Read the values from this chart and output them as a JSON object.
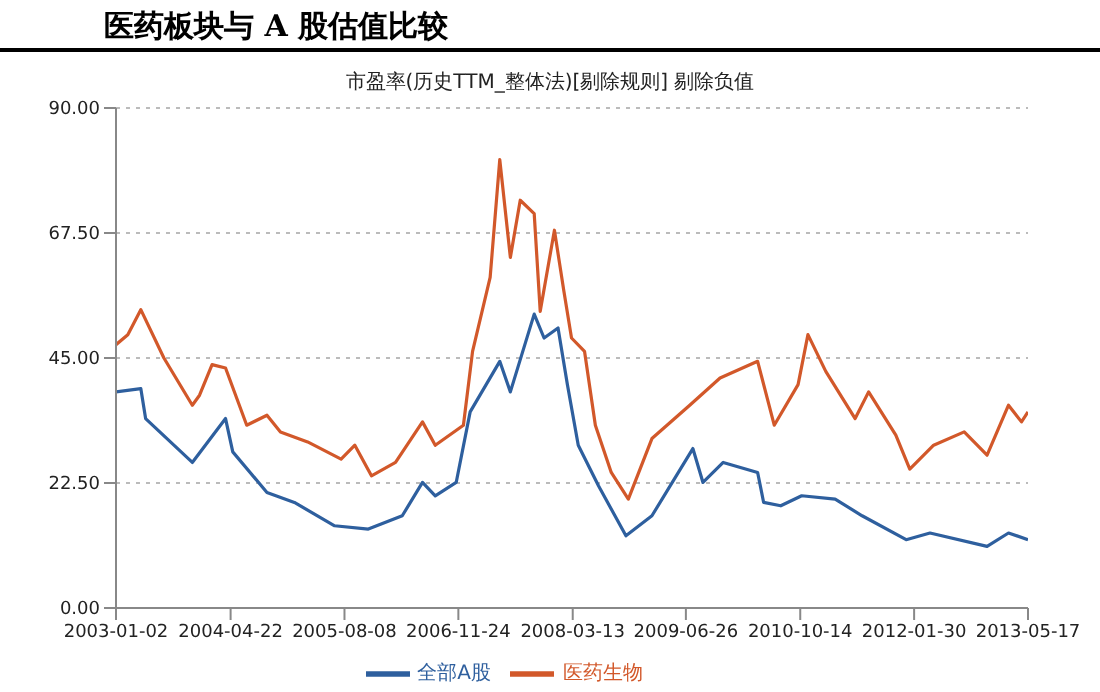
{
  "chart_data": {
    "type": "line",
    "title": "医药板块与 A 股估值比较",
    "subtitle": "市盈率(历史TTM_整体法)[剔除规则] 剔除负值",
    "xlim": [
      "2003-01-02",
      "2013-05-17"
    ],
    "xticks": [
      "2003-01-02",
      "2004-04-22",
      "2005-08-08",
      "2006-11-24",
      "2008-03-13",
      "2009-06-26",
      "2010-10-14",
      "2012-01-30",
      "2013-05-17"
    ],
    "ylim": [
      0,
      90
    ],
    "yticks": [
      {
        "value": 0,
        "label": "0.00"
      },
      {
        "value": 22.5,
        "label": "22.50"
      },
      {
        "value": 45,
        "label": "45.00"
      },
      {
        "value": 67.5,
        "label": "67.50"
      },
      {
        "value": 90,
        "label": "90.00"
      }
    ],
    "grid": "y",
    "legend": "bottom",
    "marker": "none",
    "line_style": "solid",
    "series": [
      {
        "name": "全部A股",
        "color": "#2e5f9e",
        "x": [
          "2003-01-02",
          "2003-04-15",
          "2003-05-05",
          "2003-11-15",
          "2004-04-01",
          "2004-05-01",
          "2004-09-20",
          "2005-01-12",
          "2005-06-28",
          "2005-11-15",
          "2006-04-05",
          "2006-06-28",
          "2006-08-20",
          "2006-11-15",
          "2007-01-12",
          "2007-05-15",
          "2007-06-28",
          "2007-10-05",
          "2007-11-15",
          "2008-01-12",
          "2008-02-20",
          "2008-04-05",
          "2008-06-28",
          "2008-10-20",
          "2009-02-05",
          "2009-07-25",
          "2009-09-05",
          "2009-11-28",
          "2010-04-20",
          "2010-05-15",
          "2010-07-25",
          "2010-10-20",
          "2011-03-08",
          "2011-06-28",
          "2011-12-28",
          "2012-04-05",
          "2012-11-28",
          "2013-02-25",
          "2013-05-17"
        ],
        "values": [
          38.9,
          39.5,
          34.1,
          26.2,
          34.1,
          28.1,
          20.8,
          19.0,
          14.8,
          14.2,
          16.6,
          22.6,
          20.2,
          22.6,
          35.3,
          44.4,
          38.9,
          52.9,
          48.6,
          50.4,
          40.2,
          29.3,
          22.0,
          13.0,
          16.6,
          28.7,
          22.6,
          26.2,
          24.4,
          19.0,
          18.4,
          20.2,
          19.6,
          16.6,
          12.3,
          13.5,
          11.1,
          13.5,
          12.3
        ]
      },
      {
        "name": "医药生物",
        "color": "#d2582a",
        "x": [
          "2003-01-02",
          "2003-02-20",
          "2003-04-15",
          "2003-07-20",
          "2003-11-15",
          "2003-12-15",
          "2004-02-05",
          "2004-04-01",
          "2004-06-28",
          "2004-09-20",
          "2004-11-15",
          "2005-03-08",
          "2005-07-25",
          "2005-09-20",
          "2005-11-28",
          "2006-03-08",
          "2006-06-28",
          "2006-08-20",
          "2006-12-15",
          "2007-01-22",
          "2007-04-05",
          "2007-05-15",
          "2007-06-28",
          "2007-08-08",
          "2007-10-05",
          "2007-10-30",
          "2007-12-28",
          "2008-02-05",
          "2008-03-08",
          "2008-05-01",
          "2008-06-15",
          "2008-08-20",
          "2008-10-30",
          "2009-02-05",
          "2009-07-12",
          "2009-11-15",
          "2010-04-20",
          "2010-06-28",
          "2010-10-05",
          "2010-11-15",
          "2011-01-28",
          "2011-05-30",
          "2011-07-25",
          "2011-11-15",
          "2012-01-12",
          "2012-04-20",
          "2012-08-25",
          "2012-11-28",
          "2013-02-25",
          "2013-04-20",
          "2013-05-17"
        ],
        "values": [
          47.4,
          49.2,
          53.7,
          45.0,
          36.5,
          38.3,
          43.8,
          43.2,
          32.9,
          34.7,
          31.7,
          29.9,
          26.8,
          29.3,
          23.8,
          26.2,
          33.5,
          29.3,
          32.9,
          46.2,
          59.5,
          80.7,
          63.1,
          73.4,
          71.0,
          53.4,
          68.0,
          57.1,
          48.6,
          46.2,
          32.9,
          24.4,
          19.6,
          30.5,
          36.5,
          41.4,
          44.4,
          32.9,
          40.2,
          49.2,
          42.6,
          34.1,
          38.9,
          31.1,
          25.0,
          29.3,
          31.7,
          27.5,
          36.5,
          33.5,
          35.3
        ]
      }
    ]
  }
}
